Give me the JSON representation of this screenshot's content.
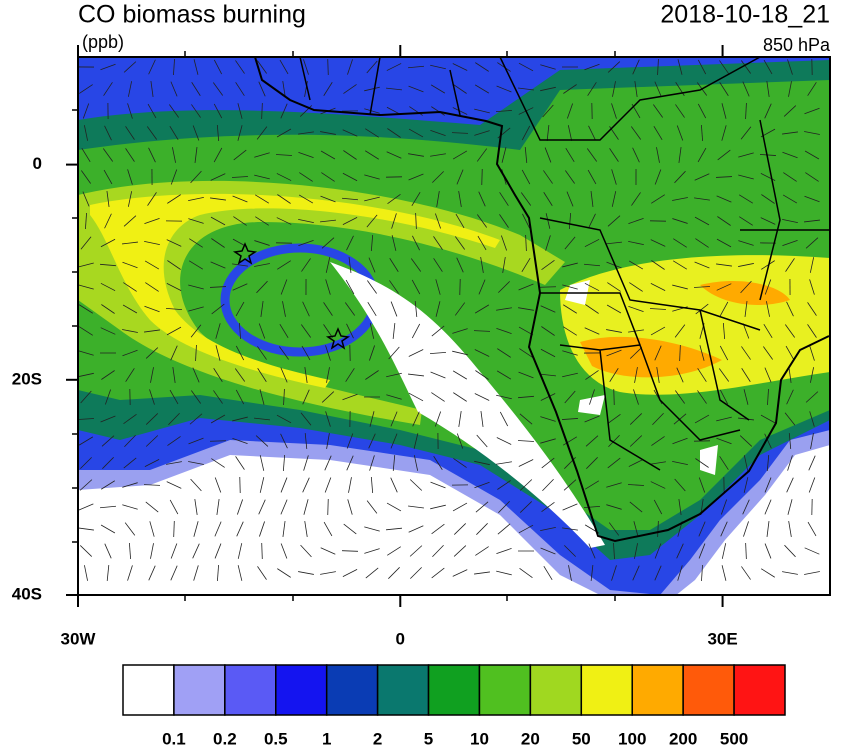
{
  "header": {
    "title": "CO biomass burning",
    "units": "(ppb)",
    "time": "2018-10-18_21",
    "level": "850 hPa"
  },
  "map": {
    "lonlim": [
      -30,
      40
    ],
    "latlim": [
      -40,
      10
    ],
    "lon_ticks": [
      {
        "value": -30,
        "label": "30W"
      },
      0,
      {
        "value": 30,
        "label": "30E"
      }
    ],
    "lat_ticks": [
      0,
      {
        "value": -20,
        "label": "20S"
      },
      {
        "value": -40,
        "label": "40S"
      }
    ]
  },
  "colorbar": {
    "levels": [
      0.1,
      0.2,
      0.5,
      1,
      2,
      5,
      10,
      20,
      50,
      100,
      200,
      500
    ],
    "colors": [
      "#ffffff",
      "#a0a0f5",
      "#5a5af5",
      "#1414f0",
      "#0a3cb4",
      "#0a786e",
      "#10a020",
      "#50c020",
      "#a0d820",
      "#f0f014",
      "#ffaa00",
      "#ff5a0a",
      "#ff1414"
    ]
  }
}
